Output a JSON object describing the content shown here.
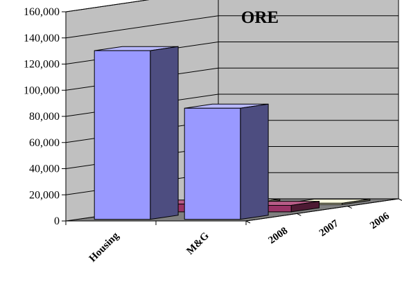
{
  "chart_data": {
    "type": "bar",
    "title": "ORE",
    "xlabel": "",
    "ylabel": "",
    "categories": [
      "Housing",
      "M&G"
    ],
    "depth_categories": [
      "2008",
      "2007",
      "2006"
    ],
    "series": [
      {
        "values": [
          129000,
          85000
        ],
        "colors": {
          "front": "#9999ff",
          "side": "#4d4d80",
          "top": "#b8b8ff"
        }
      },
      {
        "values": [
          6000,
          5000
        ],
        "colors": {
          "front": "#993366",
          "side": "#4d1a33",
          "top": "#b85c88"
        }
      },
      {
        "values": [
          1000,
          1000
        ],
        "colors": {
          "front": "#ffffcc",
          "side": "#80806a",
          "top": "#ffffe0"
        }
      }
    ],
    "ylim": [
      0,
      160000
    ],
    "yticks": [
      "0",
      "20,000",
      "40,000",
      "60,000",
      "80,000",
      "100,000",
      "120,000",
      "140,000",
      "160,000"
    ],
    "grid": true,
    "wall_color": "#c0c0c0",
    "floor_color": "#808080"
  }
}
